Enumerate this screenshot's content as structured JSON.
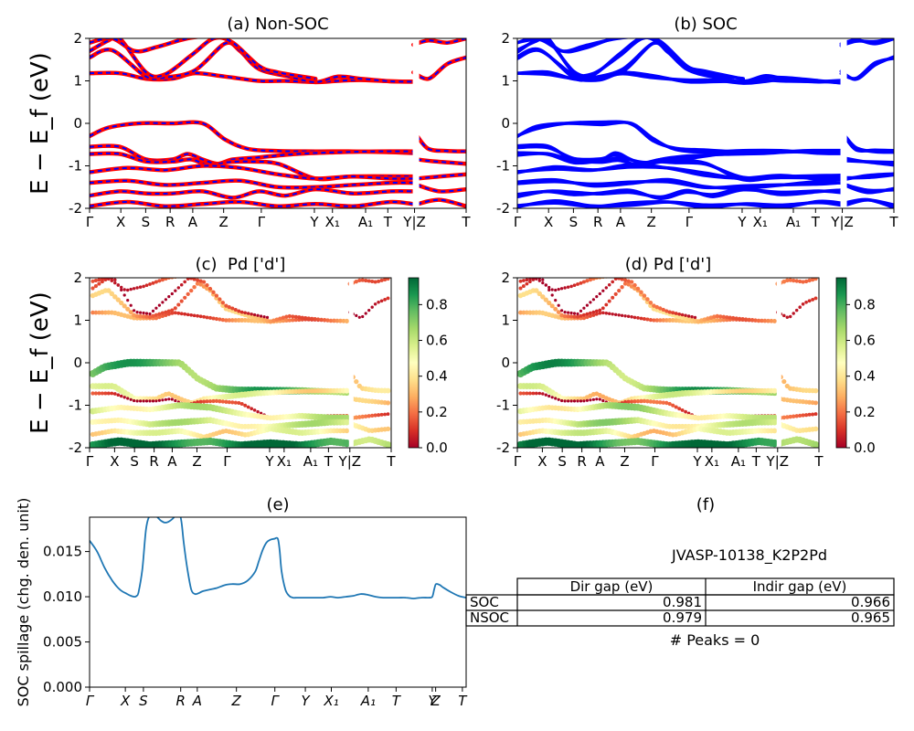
{
  "figure": {
    "ylabel_band": "E − E_f (eV)",
    "spillage_ylabel": "SOC spillage (chg. den. unit)",
    "panel_e_title": "(e)",
    "panel_f_title": "(f)"
  },
  "colors": {
    "red": "#ff0000",
    "blue": "#0000ff",
    "spillage": "#1f77b4",
    "cmap": [
      "#a50026",
      "#d73027",
      "#f46d43",
      "#fdae61",
      "#fee08b",
      "#ffffbf",
      "#d9ef8b",
      "#a6d96a",
      "#66bd63",
      "#1a9850",
      "#006837"
    ]
  },
  "chart_data": [
    {
      "id": "a",
      "type": "line",
      "title": "(a) Non-SOC",
      "ylim": [
        -2,
        2
      ],
      "yticks": [
        -2,
        -1,
        0,
        1,
        2
      ],
      "xtick_labels": [
        "Γ",
        "X",
        "S",
        "R",
        "A",
        "Z",
        "Γ",
        "Y",
        "X₁",
        "A₁",
        "T",
        "Y|Z",
        "T"
      ],
      "xtick_pos": [
        0,
        0.083,
        0.149,
        0.214,
        0.274,
        0.356,
        0.456,
        0.597,
        0.645,
        0.733,
        0.792,
        0.863,
        1.0
      ],
      "path_break": [
        0.863
      ],
      "bands": [
        {
          "x": [
            0,
            0.08,
            0.15,
            0.22,
            0.28,
            0.36,
            0.45,
            0.52,
            0.6,
            0.66,
            0.72,
            0.8,
            0.86
          ],
          "y": [
            1.18,
            1.18,
            1.05,
            1.05,
            1.18,
            1.1,
            1.0,
            1.0,
            0.97,
            1.0,
            1.02,
            0.99,
            0.98
          ]
        },
        {
          "x": [
            0,
            0.06,
            0.15,
            0.2,
            0.28,
            0.36,
            0.4,
            0.45,
            0.53,
            0.6,
            0.66,
            0.72,
            0.8,
            0.86
          ],
          "y": [
            1.55,
            1.72,
            1.1,
            1.08,
            1.25,
            1.88,
            1.7,
            1.28,
            1.1,
            0.97,
            1.1,
            1.05,
            0.99,
            0.98
          ]
        },
        {
          "x": [
            0,
            0.05,
            0.08,
            0.15,
            0.2,
            0.27,
            0.33,
            0.38,
            0.45,
            0.5,
            0.6
          ],
          "y": [
            1.7,
            1.95,
            2.0,
            1.2,
            1.15,
            1.6,
            2.0,
            1.9,
            1.35,
            1.2,
            1.05
          ]
        },
        {
          "x": [
            0,
            0.06,
            0.12,
            0.18,
            0.26,
            0.35
          ],
          "y": [
            1.9,
            2.0,
            1.7,
            1.8,
            2.0,
            2.1
          ]
        },
        {
          "x": [
            0.86,
            0.9,
            0.95,
            1.0
          ],
          "y": [
            1.85,
            1.95,
            1.9,
            2.0
          ]
        },
        {
          "x": [
            0.86,
            0.9,
            0.95,
            1.0
          ],
          "y": [
            1.2,
            1.05,
            1.4,
            1.55
          ]
        },
        {
          "x": [
            0,
            0.05,
            0.13,
            0.22,
            0.3,
            0.36,
            0.42,
            0.5,
            0.6,
            0.7,
            0.8,
            0.86
          ],
          "y": [
            -0.3,
            -0.1,
            0.0,
            0.0,
            0.0,
            -0.38,
            -0.6,
            -0.65,
            -0.66,
            -0.66,
            -0.68,
            -0.7
          ]
        },
        {
          "x": [
            0,
            0.08,
            0.15,
            0.22,
            0.26,
            0.3,
            0.34,
            0.38,
            0.45,
            0.55,
            0.66,
            0.76,
            0.86
          ],
          "y": [
            -0.55,
            -0.55,
            -0.85,
            -0.85,
            -0.72,
            -0.85,
            -0.95,
            -0.85,
            -0.8,
            -0.72,
            -0.68,
            -0.66,
            -0.66
          ]
        },
        {
          "x": [
            0,
            0.08,
            0.15,
            0.22,
            0.27,
            0.32,
            0.36,
            0.42,
            0.5,
            0.6,
            0.7,
            0.86
          ],
          "y": [
            -0.72,
            -0.72,
            -0.9,
            -0.9,
            -0.85,
            -1.0,
            -0.92,
            -0.9,
            -0.95,
            -1.3,
            -1.25,
            -1.25
          ]
        },
        {
          "x": [
            0,
            0.1,
            0.2,
            0.3,
            0.4,
            0.5,
            0.6,
            0.7,
            0.8,
            0.86
          ],
          "y": [
            -1.15,
            -1.05,
            -1.1,
            -1.0,
            -1.05,
            -1.2,
            -1.3,
            -1.25,
            -1.3,
            -1.3
          ]
        },
        {
          "x": [
            0,
            0.1,
            0.2,
            0.3,
            0.4,
            0.5,
            0.6,
            0.7,
            0.8,
            0.86
          ],
          "y": [
            -1.4,
            -1.35,
            -1.45,
            -1.4,
            -1.35,
            -1.5,
            -1.5,
            -1.45,
            -1.4,
            -1.4
          ]
        },
        {
          "x": [
            0,
            0.08,
            0.15,
            0.22,
            0.3,
            0.38,
            0.45,
            0.52,
            0.6,
            0.7,
            0.8,
            0.86
          ],
          "y": [
            -1.7,
            -1.6,
            -1.65,
            -1.65,
            -1.6,
            -1.75,
            -1.6,
            -1.7,
            -1.55,
            -1.65,
            -1.6,
            -1.6
          ]
        },
        {
          "x": [
            0,
            0.1,
            0.2,
            0.3,
            0.4,
            0.5,
            0.6,
            0.7,
            0.8,
            0.86
          ],
          "y": [
            -1.95,
            -1.85,
            -1.95,
            -1.9,
            -1.85,
            -1.95,
            -1.9,
            -1.95,
            -1.85,
            -1.9
          ]
        },
        {
          "x": [
            0.87,
            0.9,
            0.95,
            1.0
          ],
          "y": [
            -0.3,
            -0.6,
            -0.65,
            -0.66
          ]
        },
        {
          "x": [
            0.87,
            0.92,
            1.0
          ],
          "y": [
            -0.85,
            -0.9,
            -0.95
          ]
        },
        {
          "x": [
            0.87,
            0.93,
            1.0
          ],
          "y": [
            -1.3,
            -1.25,
            -1.2
          ]
        },
        {
          "x": [
            0.87,
            0.93,
            1.0
          ],
          "y": [
            -1.45,
            -1.6,
            -1.55
          ]
        },
        {
          "x": [
            0.87,
            0.93,
            1.0
          ],
          "y": [
            -1.9,
            -1.8,
            -1.95
          ]
        }
      ]
    },
    {
      "id": "b",
      "type": "line",
      "title": "(b) SOC",
      "ylim": [
        -2,
        2
      ],
      "yticks": [
        -2,
        -1,
        0,
        1,
        2
      ],
      "xtick_labels": [
        "Γ",
        "X",
        "S",
        "R",
        "A",
        "Z",
        "Γ",
        "Y",
        "X₁",
        "A₁",
        "T",
        "Y|Z",
        "T"
      ],
      "xtick_pos": [
        0,
        0.083,
        0.149,
        0.214,
        0.274,
        0.356,
        0.456,
        0.597,
        0.645,
        0.733,
        0.792,
        0.863,
        1.0
      ],
      "path_break": [
        0.863
      ],
      "bands": []
    },
    {
      "id": "c",
      "type": "scatter",
      "title": "(c)  Pd ['d']",
      "ylim": [
        -2,
        2
      ],
      "yticks": [
        -2,
        -1,
        0,
        1,
        2
      ],
      "xtick_labels": [
        "Γ",
        "X",
        "S",
        "R",
        "A",
        "Z",
        "Γ",
        "Y",
        "X₁",
        "A₁",
        "T",
        "Y|Z",
        "T"
      ],
      "xtick_pos": [
        0,
        0.083,
        0.149,
        0.214,
        0.274,
        0.356,
        0.456,
        0.597,
        0.645,
        0.733,
        0.792,
        0.863,
        1.0
      ],
      "colorbar": {
        "min": 0.0,
        "max": 0.95,
        "ticks": [
          0.0,
          0.2,
          0.4,
          0.6,
          0.8
        ]
      },
      "weights": [
        0.2,
        0.25,
        0.05,
        0.15,
        0.25,
        0.1,
        0.75,
        0.45,
        0.05,
        0.55,
        0.55,
        0.45,
        0.9,
        0.3,
        0.25,
        0.15,
        0.45,
        0.7
      ]
    },
    {
      "id": "d",
      "type": "scatter",
      "title": "(d) Pd ['d']",
      "ylim": [
        -2,
        2
      ],
      "yticks": [
        -2,
        -1,
        0,
        1,
        2
      ],
      "xtick_labels": [
        "Γ",
        "X",
        "S",
        "R",
        "A",
        "Z",
        "Γ",
        "Y",
        "X₁",
        "A₁",
        "T",
        "Y|Z",
        "T"
      ],
      "xtick_pos": [
        0,
        0.083,
        0.149,
        0.214,
        0.274,
        0.356,
        0.456,
        0.597,
        0.645,
        0.733,
        0.792,
        0.863,
        1.0
      ],
      "colorbar": {
        "min": 0.0,
        "max": 0.95,
        "ticks": [
          0.0,
          0.2,
          0.4,
          0.6,
          0.8
        ]
      }
    },
    {
      "id": "e",
      "type": "line",
      "title": "(e)",
      "ylabel": "SOC spillage (chg. den. unit)",
      "ylim": [
        0,
        0.0188
      ],
      "yticks": [
        0.0,
        0.005,
        0.01,
        0.015
      ],
      "ytick_labels": [
        "0.000",
        "0.005",
        "0.010",
        "0.015"
      ],
      "xtick_labels": [
        "Γ",
        "X",
        "S",
        "R",
        "A",
        "Z",
        "Γ",
        "Y",
        "X₁",
        "A₁",
        "T",
        "Y",
        "Z",
        "T"
      ],
      "xtick_pos": [
        0,
        0.095,
        0.143,
        0.242,
        0.286,
        0.39,
        0.492,
        0.573,
        0.642,
        0.74,
        0.814,
        0.91,
        0.919,
        0.99
      ],
      "x": [
        0,
        0.02,
        0.04,
        0.06,
        0.08,
        0.1,
        0.11,
        0.12,
        0.125,
        0.13,
        0.14,
        0.15,
        0.16,
        0.17,
        0.18,
        0.19,
        0.2,
        0.21,
        0.22,
        0.23,
        0.24,
        0.245,
        0.25,
        0.26,
        0.27,
        0.28,
        0.29,
        0.3,
        0.32,
        0.34,
        0.36,
        0.38,
        0.4,
        0.42,
        0.44,
        0.45,
        0.46,
        0.47,
        0.48,
        0.49,
        0.5,
        0.505,
        0.51,
        0.52,
        0.53,
        0.54,
        0.55,
        0.57,
        0.6,
        0.62,
        0.64,
        0.66,
        0.68,
        0.7,
        0.72,
        0.74,
        0.76,
        0.78,
        0.8,
        0.82,
        0.84,
        0.86,
        0.88,
        0.9,
        0.91,
        0.915,
        0.92,
        0.93,
        0.94,
        0.96,
        0.98,
        1.0
      ],
      "y": [
        0.0162,
        0.015,
        0.0132,
        0.0118,
        0.0108,
        0.0103,
        0.0101,
        0.01,
        0.0101,
        0.0105,
        0.013,
        0.0175,
        0.019,
        0.0192,
        0.0188,
        0.0184,
        0.0182,
        0.0183,
        0.0186,
        0.019,
        0.019,
        0.018,
        0.016,
        0.013,
        0.0108,
        0.0103,
        0.0104,
        0.0106,
        0.0108,
        0.011,
        0.0113,
        0.0114,
        0.0114,
        0.0118,
        0.0128,
        0.014,
        0.0152,
        0.016,
        0.0163,
        0.0164,
        0.0164,
        0.015,
        0.0128,
        0.0108,
        0.0101,
        0.0099,
        0.0099,
        0.0099,
        0.0099,
        0.0099,
        0.01,
        0.0099,
        0.01,
        0.0101,
        0.0103,
        0.0102,
        0.01,
        0.0099,
        0.0099,
        0.0099,
        0.0099,
        0.0098,
        0.0099,
        0.0099,
        0.01,
        0.0108,
        0.0114,
        0.0113,
        0.011,
        0.0105,
        0.0101,
        0.0099
      ]
    },
    {
      "id": "f",
      "type": "table",
      "title": "(f)",
      "table_title": "JVASP-10138_K2P2Pd",
      "columns": [
        "Dir gap (eV)",
        "Indir gap (eV)"
      ],
      "rows": [
        {
          "label": "SOC",
          "values": [
            "0.981",
            "0.966"
          ]
        },
        {
          "label": "NSOC",
          "values": [
            "0.979",
            "0.965"
          ]
        }
      ],
      "footer": "# Peaks = 0"
    }
  ]
}
